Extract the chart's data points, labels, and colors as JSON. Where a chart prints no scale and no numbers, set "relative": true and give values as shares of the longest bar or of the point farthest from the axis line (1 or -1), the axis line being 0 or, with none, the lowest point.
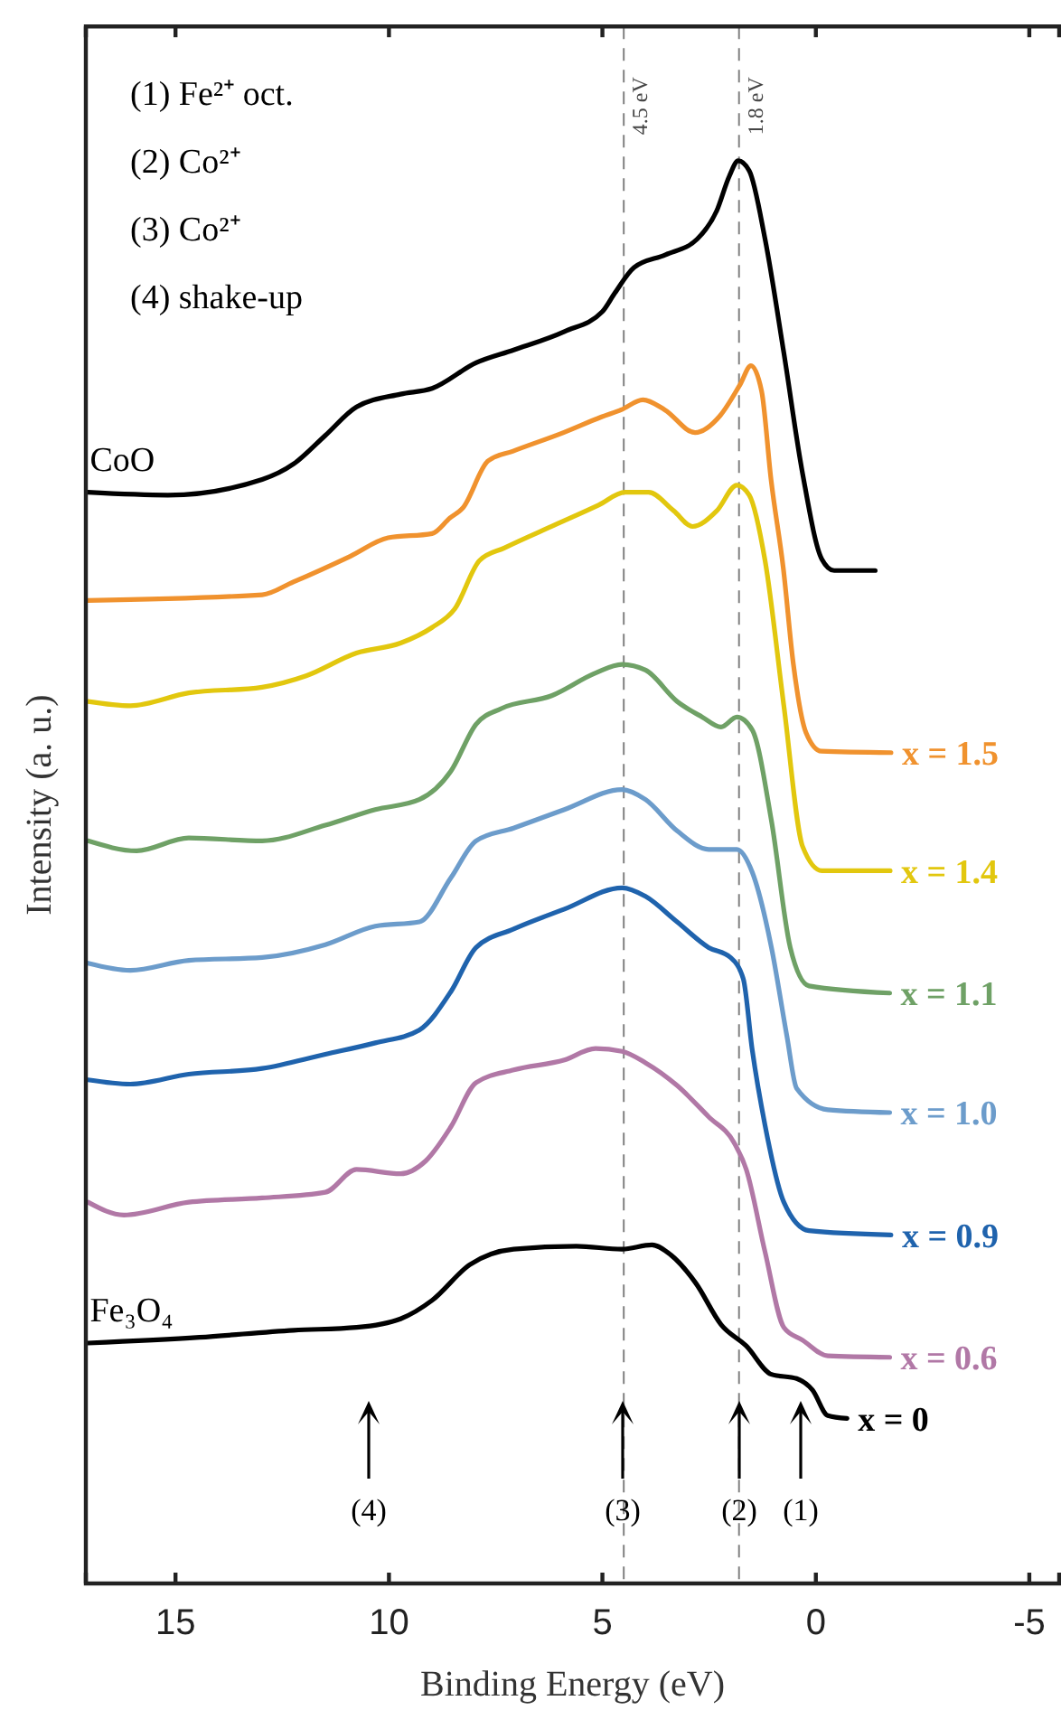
{
  "chart_data": {
    "type": "line",
    "relative": true,
    "xlabel": "Binding Energy (eV)",
    "ylabel": "Intensity (a. u.)",
    "xlim": [
      17.1,
      -5.7
    ],
    "xticks": [
      15,
      10,
      5,
      0,
      -5
    ],
    "line_style": "solid",
    "marker": "none",
    "grid": false,
    "legend": "right",
    "ref_lines": [
      {
        "axis": "x",
        "value": 4.5,
        "label": "4.5 eV",
        "color": "#808080",
        "line_style": "dashed"
      },
      {
        "axis": "x",
        "value": 1.8,
        "label": "1.8 eV",
        "color": "#808080",
        "line_style": "dashed"
      }
    ],
    "annotations": [
      "(1) Fe²⁺ oct.",
      "(2) Co²⁺",
      "(3) Co²⁺",
      "(4) shake-up",
      {
        "text": "CoO",
        "x": 17.09,
        "y": 0.767
      },
      {
        "text": "Fe₃O₄",
        "x": 17.09,
        "y": 0.169
      },
      "(4)",
      "(3)",
      "(2)",
      "(1)"
    ],
    "series": [
      {
        "color": "#000000",
        "x": [
          17.05,
          15.18,
          12.97,
          12.23,
          11.49,
          10.76,
          9.73,
          8.99,
          7.96,
          7.08,
          5.89,
          5.0,
          4.71,
          4.26,
          3.52,
          2.78,
          2.32,
          2.03,
          1.82,
          1.56,
          1.19,
          0.75,
          0.31,
          -0.14,
          -0.43,
          -1.39
        ],
        "values": [
          0.767,
          0.765,
          0.776,
          0.787,
          0.807,
          0.827,
          0.836,
          0.84,
          0.858,
          0.867,
          0.88,
          0.894,
          0.907,
          0.925,
          0.934,
          0.945,
          0.965,
          0.989,
          1,
          0.993,
          0.945,
          0.865,
          0.78,
          0.72,
          0.712,
          0.712
        ]
      },
      {
        "name": "x = 1.5",
        "color": "#f0922e",
        "x": [
          17.05,
          12.97,
          12.24,
          10.91,
          10.02,
          8.99,
          8.57,
          8.27,
          7.68,
          7.09,
          5.91,
          5.02,
          4.56,
          4.05,
          3.54,
          2.83,
          2.24,
          1.77,
          1.52,
          1.27,
          1.05,
          0.76,
          0.53,
          0.23,
          -0.13,
          -1.76
        ],
        "values": [
          0.691,
          0.695,
          0.704,
          0.722,
          0.735,
          0.738,
          0.749,
          0.756,
          0.789,
          0.796,
          0.809,
          0.82,
          0.825,
          0.832,
          0.825,
          0.809,
          0.821,
          0.843,
          0.856,
          0.838,
          0.776,
          0.713,
          0.647,
          0.598,
          0.585,
          0.584
        ]
      },
      {
        "name": "x = 1.4",
        "color": "#e2c70e",
        "x": [
          17.05,
          16.06,
          14.69,
          12.97,
          11.94,
          10.76,
          9.73,
          8.99,
          8.46,
          7.88,
          7.29,
          6.12,
          5.09,
          4.47,
          3.92,
          3.33,
          2.89,
          2.32,
          1.85,
          1.56,
          1.19,
          0.75,
          0.31,
          -0.14,
          -1.74
        ],
        "values": [
          0.62,
          0.617,
          0.626,
          0.63,
          0.638,
          0.654,
          0.661,
          0.672,
          0.685,
          0.719,
          0.728,
          0.744,
          0.758,
          0.767,
          0.767,
          0.754,
          0.743,
          0.754,
          0.772,
          0.765,
          0.719,
          0.617,
          0.518,
          0.501,
          0.501
        ]
      },
      {
        "name": "x = 1.1",
        "color": "#6fa166",
        "x": [
          17.05,
          15.91,
          14.69,
          12.97,
          11.49,
          10.32,
          9.29,
          8.55,
          7.96,
          7.37,
          6.19,
          5.16,
          4.54,
          3.99,
          3.25,
          2.66,
          2.22,
          1.85,
          1.49,
          1.04,
          0.6,
          0.16,
          -1.73
        ],
        "values": [
          0.522,
          0.515,
          0.524,
          0.522,
          0.533,
          0.544,
          0.551,
          0.571,
          0.604,
          0.615,
          0.624,
          0.64,
          0.646,
          0.642,
          0.62,
          0.609,
          0.602,
          0.609,
          0.6,
          0.536,
          0.447,
          0.42,
          0.415
        ]
      },
      {
        "name": "x = 1.0",
        "color": "#6c9ccb",
        "x": [
          17.05,
          16.06,
          14.69,
          12.97,
          11.49,
          10.32,
          9.29,
          8.55,
          7.96,
          7.08,
          5.89,
          4.54,
          3.99,
          3.25,
          2.51,
          1.85,
          1.49,
          1.04,
          0.68,
          0.45,
          -0.28,
          -1.73
        ],
        "values": [
          0.436,
          0.431,
          0.438,
          0.44,
          0.449,
          0.462,
          0.465,
          0.496,
          0.522,
          0.531,
          0.544,
          0.558,
          0.551,
          0.529,
          0.516,
          0.516,
          0.5,
          0.447,
          0.385,
          0.348,
          0.333,
          0.331
        ]
      },
      {
        "name": "x = 0.9",
        "color": "#1f63ad",
        "x": [
          17.05,
          16.06,
          14.69,
          12.97,
          11.49,
          10.32,
          9.29,
          8.55,
          7.96,
          7.08,
          5.89,
          4.54,
          3.99,
          3.25,
          2.51,
          2.0,
          1.7,
          1.49,
          1.19,
          0.75,
          0.16,
          -1.76
        ],
        "values": [
          0.354,
          0.351,
          0.358,
          0.362,
          0.372,
          0.38,
          0.389,
          0.416,
          0.447,
          0.46,
          0.474,
          0.489,
          0.483,
          0.465,
          0.447,
          0.44,
          0.425,
          0.375,
          0.322,
          0.268,
          0.248,
          0.245
        ]
      },
      {
        "name": "x = 0.6",
        "color": "#b178a6",
        "x": [
          17.05,
          16.21,
          14.69,
          12.97,
          11.49,
          10.76,
          9.73,
          9.14,
          8.55,
          7.96,
          7.08,
          5.89,
          5.16,
          4.54,
          3.99,
          3.25,
          2.51,
          1.92,
          1.63,
          1.19,
          0.75,
          0.31,
          -0.28,
          -1.73
        ],
        "values": [
          0.268,
          0.259,
          0.268,
          0.271,
          0.275,
          0.291,
          0.288,
          0.297,
          0.321,
          0.352,
          0.361,
          0.368,
          0.376,
          0.374,
          0.366,
          0.35,
          0.328,
          0.31,
          0.291,
          0.233,
          0.18,
          0.171,
          0.16,
          0.159
        ]
      },
      {
        "name": "x = 0",
        "color": "#000000",
        "x": [
          17.05,
          14.44,
          12.23,
          10.76,
          9.73,
          8.99,
          8.11,
          7.08,
          5.61,
          4.54,
          3.84,
          3.4,
          2.81,
          2.22,
          1.63,
          1.04,
          0.45,
          0.08,
          -0.28,
          -0.73
        ],
        "values": [
          0.169,
          0.173,
          0.178,
          0.18,
          0.186,
          0.199,
          0.224,
          0.235,
          0.237,
          0.235,
          0.238,
          0.231,
          0.211,
          0.182,
          0.167,
          0.147,
          0.144,
          0.136,
          0.118,
          0.116
        ]
      }
    ]
  }
}
